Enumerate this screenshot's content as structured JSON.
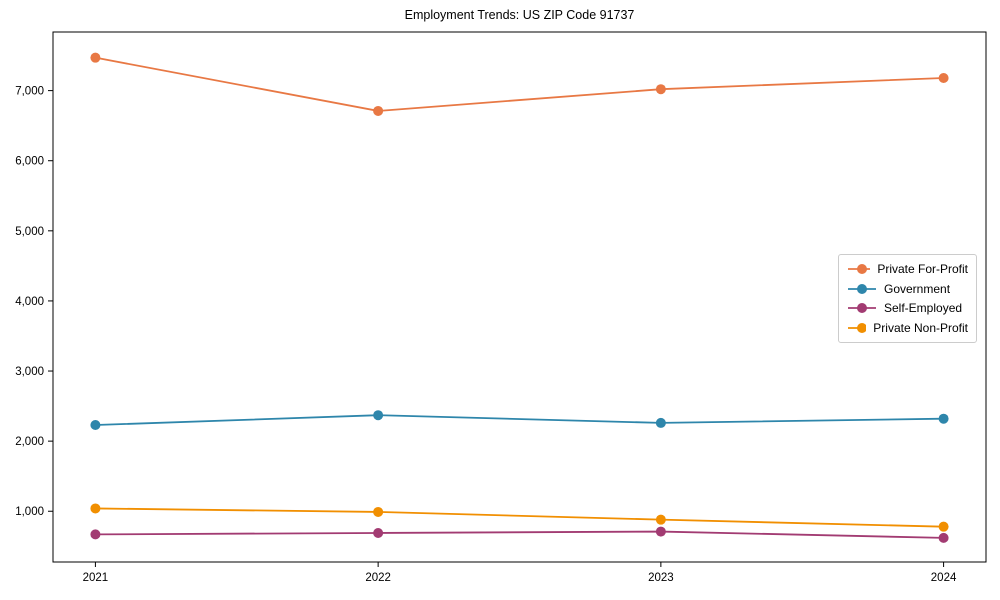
{
  "chart_data": {
    "type": "line",
    "title": "Employment Trends: US ZIP Code 91737",
    "x": [
      2021,
      2022,
      2023,
      2024
    ],
    "x_tick_labels": [
      "2021",
      "2022",
      "2023",
      "2024"
    ],
    "series": [
      {
        "name": "Private For-Profit",
        "color": "#E87844",
        "values": [
          7470,
          6710,
          7020,
          7180
        ]
      },
      {
        "name": "Government",
        "color": "#2E86AB",
        "values": [
          2230,
          2370,
          2260,
          2320
        ]
      },
      {
        "name": "Self-Employed",
        "color": "#A23B72",
        "values": [
          670,
          690,
          710,
          620
        ]
      },
      {
        "name": "Private Non-Profit",
        "color": "#F18F01",
        "values": [
          1040,
          990,
          880,
          780
        ]
      }
    ],
    "yticks": [
      1000,
      2000,
      3000,
      4000,
      5000,
      6000,
      7000
    ],
    "ytick_labels": [
      "1,000",
      "2,000",
      "3,000",
      "4,000",
      "5,000",
      "6,000",
      "7,000"
    ],
    "ylim": [
      276,
      7836
    ],
    "xlim": [
      2020.85,
      2024.15
    ],
    "grid": false,
    "legend_position": "center-right",
    "marker": "circle",
    "axis_color": "#000000",
    "background_color": "#ffffff"
  }
}
